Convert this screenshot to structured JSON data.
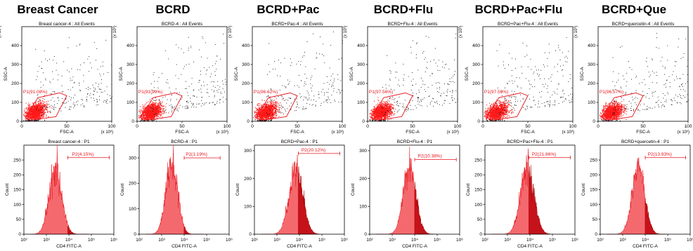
{
  "chart_data": [
    {
      "type": "figure-grid",
      "panels": [
        {
          "title": "Breast Cancer",
          "scatter": {
            "type": "scatter",
            "subtitle": "Breast cancer-4 : All Events",
            "xlabel": "FSC-A",
            "ylabel": "SSC-A",
            "x_mult": "(x 10³)",
            "y_mult": "(x 10³)",
            "xlim": [
              0,
              100
            ],
            "ylim": [
              0,
              500
            ],
            "xticks": [
              "0",
              "50",
              "100"
            ],
            "yticks": [
              "0",
              "100",
              "200",
              "300",
              "400"
            ],
            "gate_label": "P1(91.08%)",
            "gate": [
              [
                4,
                20
              ],
              [
                18,
                125
              ],
              [
                42,
                150
              ],
              [
                50,
                135
              ],
              [
                38,
                25
              ],
              [
                10,
                5
              ]
            ]
          },
          "histogram": {
            "type": "area",
            "subtitle": "Breast cancer-4 : P1",
            "xlabel": "CD4 FITC-A",
            "ylabel": "Count",
            "xscale": "log",
            "xlim": [
              2,
              6
            ],
            "ylim": [
              0,
              300
            ],
            "xticks": [
              "10²",
              "10³",
              "10⁴",
              "10⁵",
              "10⁶"
            ],
            "yticks": [
              "0",
              "50",
              "100",
              "150",
              "200",
              "250"
            ],
            "peak_log": 3.4,
            "peak_count": 218,
            "width_log": 0.28,
            "gate_label": "P2(4.15%)",
            "gate_range_log": [
              3.95,
              5.8
            ],
            "gate_count": 258
          }
        },
        {
          "title": "BCRD",
          "scatter": {
            "type": "scatter",
            "subtitle": "BCRD-4 : All Events",
            "xlabel": "FSC-A",
            "ylabel": "SSC-A",
            "x_mult": "(x 10³)",
            "y_mult": "(x 10³)",
            "xlim": [
              0,
              100
            ],
            "ylim": [
              0,
              500
            ],
            "xticks": [
              "0",
              "50",
              "100"
            ],
            "yticks": [
              "0",
              "100",
              "200",
              "300",
              "400"
            ],
            "gate_label": "P1(93.99%)",
            "gate": [
              [
                4,
                20
              ],
              [
                18,
                125
              ],
              [
                42,
                150
              ],
              [
                50,
                135
              ],
              [
                38,
                25
              ],
              [
                10,
                5
              ]
            ]
          },
          "histogram": {
            "type": "area",
            "subtitle": "BCRD-4 : P1",
            "xlabel": "CD4 FITC-A",
            "ylabel": "Count",
            "xscale": "log",
            "xlim": [
              2,
              6
            ],
            "ylim": [
              0,
              350
            ],
            "xticks": [
              "10²",
              "10³",
              "10⁴",
              "10⁵",
              "10⁶"
            ],
            "yticks": [
              "0",
              "100",
              "200",
              "300"
            ],
            "peak_log": 3.45,
            "peak_count": 285,
            "width_log": 0.26,
            "gate_label": "P2(1.19%)",
            "gate_range_log": [
              4.0,
              5.6
            ],
            "gate_count": 300
          }
        },
        {
          "title": "BCRD+Pac",
          "scatter": {
            "type": "scatter",
            "subtitle": "BCRD+Pac-4 : All Events",
            "xlabel": "FSC-A",
            "ylabel": "SSC-A",
            "x_mult": "(x 10³)",
            "y_mult": "(x 10³)",
            "xlim": [
              0,
              100
            ],
            "ylim": [
              0,
              500
            ],
            "xticks": [
              "0",
              "50",
              "100"
            ],
            "yticks": [
              "0",
              "100",
              "200",
              "300",
              "400"
            ],
            "gate_label": "P1(96.62%)",
            "gate": [
              [
                4,
                20
              ],
              [
                18,
                125
              ],
              [
                42,
                150
              ],
              [
                50,
                135
              ],
              [
                38,
                25
              ],
              [
                10,
                5
              ]
            ]
          },
          "histogram": {
            "type": "area",
            "subtitle": "BCRD+Pac-4 : P1",
            "xlabel": "CD4 FITC-A",
            "ylabel": "Count",
            "xscale": "log",
            "xlim": [
              2,
              6
            ],
            "ylim": [
              0,
              320
            ],
            "xticks": [
              "10²",
              "10³",
              "10⁴",
              "10⁵",
              "10⁶"
            ],
            "yticks": [
              "0",
              "100",
              "200",
              "300"
            ],
            "peak_log": 3.85,
            "peak_count": 235,
            "width_log": 0.3,
            "gate_label": "P2(20.12%)",
            "gate_range_log": [
              3.95,
              5.8
            ],
            "gate_count": 290
          }
        },
        {
          "title": "BCRD+Flu",
          "scatter": {
            "type": "scatter",
            "subtitle": "BCRD+Flu-4 : All Events",
            "xlabel": "FSC-A",
            "ylabel": "SSC-A",
            "x_mult": "(x 10³)",
            "y_mult": "(x 10³)",
            "xlim": [
              0,
              100
            ],
            "ylim": [
              0,
              500
            ],
            "xticks": [
              "0",
              "50",
              "100"
            ],
            "yticks": [
              "0",
              "100",
              "200",
              "300",
              "400"
            ],
            "gate_label": "P1(97.56%)",
            "gate": [
              [
                4,
                20
              ],
              [
                18,
                125
              ],
              [
                42,
                150
              ],
              [
                50,
                135
              ],
              [
                38,
                25
              ],
              [
                10,
                5
              ]
            ]
          },
          "histogram": {
            "type": "area",
            "subtitle": "BCRD+Flu-4 : P1",
            "xlabel": "CD4 FITC-A",
            "ylabel": "Count",
            "xscale": "log",
            "xlim": [
              2,
              6
            ],
            "ylim": [
              0,
              320
            ],
            "xticks": [
              "10²",
              "10³",
              "10⁴",
              "10⁵",
              "10⁶"
            ],
            "yticks": [
              "0",
              "100",
              "200",
              "300"
            ],
            "peak_log": 3.78,
            "peak_count": 240,
            "width_log": 0.28,
            "gate_label": "P2(10.38%)",
            "gate_range_log": [
              4.0,
              5.85
            ],
            "gate_count": 268
          }
        },
        {
          "title": "BCRD+Pac+Flu",
          "scatter": {
            "type": "scatter",
            "subtitle": "BCRD+Pac+Flu-4 : All Events",
            "xlabel": "FSC-A",
            "ylabel": "SSC-A",
            "x_mult": "(x 10³)",
            "y_mult": "(x 10³)",
            "xlim": [
              0,
              100
            ],
            "ylim": [
              0,
              500
            ],
            "xticks": [
              "0",
              "50",
              "100"
            ],
            "yticks": [
              "0",
              "100",
              "200",
              "300",
              "400"
            ],
            "gate_label": "P1(97.59%)",
            "gate": [
              [
                4,
                20
              ],
              [
                18,
                125
              ],
              [
                42,
                150
              ],
              [
                50,
                135
              ],
              [
                38,
                25
              ],
              [
                10,
                5
              ]
            ]
          },
          "histogram": {
            "type": "area",
            "subtitle": "BCRD+Pac+Flu-4 : P1",
            "xlabel": "CD4 FITC-A",
            "ylabel": "Count",
            "xscale": "log",
            "xlim": [
              2,
              6
            ],
            "ylim": [
              0,
              300
            ],
            "xticks": [
              "10²",
              "10³",
              "10⁴",
              "10⁵",
              "10⁶"
            ],
            "yticks": [
              "0",
              "50",
              "100",
              "150",
              "200",
              "250"
            ],
            "peak_log": 3.88,
            "peak_count": 222,
            "width_log": 0.3,
            "gate_label": "P2(21.86%)",
            "gate_range_log": [
              3.95,
              5.8
            ],
            "gate_count": 258
          }
        },
        {
          "title": "BCRD+Que",
          "scatter": {
            "type": "scatter",
            "subtitle": "BCRD+quercetin-4 : All Events",
            "xlabel": "FSC-A",
            "ylabel": "SSC-A",
            "x_mult": "(x 10³)",
            "y_mult": "(x 10³)",
            "xlim": [
              0,
              100
            ],
            "ylim": [
              0,
              500
            ],
            "xticks": [
              "0",
              "50",
              "100"
            ],
            "yticks": [
              "0",
              "100",
              "200",
              "300",
              "400"
            ],
            "gate_label": "P1(96.57%)",
            "gate": [
              [
                4,
                20
              ],
              [
                18,
                125
              ],
              [
                42,
                150
              ],
              [
                50,
                135
              ],
              [
                38,
                25
              ],
              [
                10,
                5
              ]
            ]
          },
          "histogram": {
            "type": "area",
            "subtitle": "BCRD+quercetin-4 : P1",
            "xlabel": "CD4 FITC-A",
            "ylabel": "Count",
            "xscale": "log",
            "xlim": [
              2,
              6
            ],
            "ylim": [
              0,
              300
            ],
            "xticks": [
              "10²",
              "10³",
              "10⁴",
              "10⁵",
              "10⁶"
            ],
            "yticks": [
              "0",
              "50",
              "100",
              "150",
              "200",
              "250"
            ],
            "peak_log": 3.7,
            "peak_count": 225,
            "width_log": 0.28,
            "gate_label": "P2(13.93%)",
            "gate_range_log": [
              4.0,
              5.8
            ],
            "gate_count": 258
          }
        }
      ]
    }
  ]
}
